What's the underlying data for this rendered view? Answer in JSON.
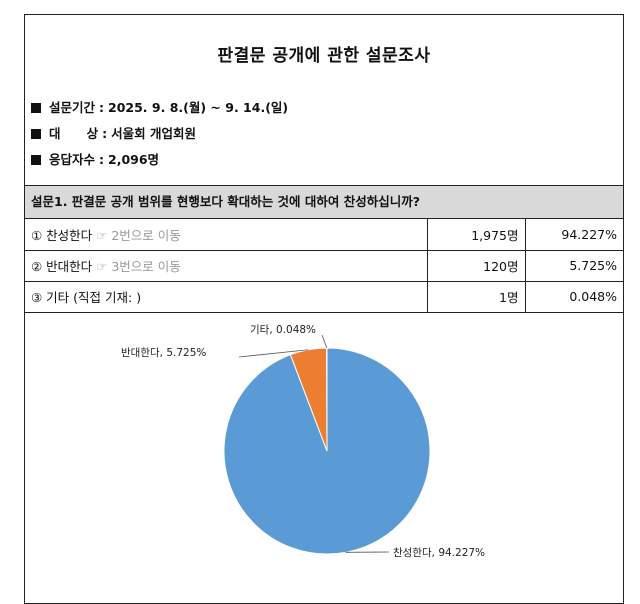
{
  "document": {
    "title": "판결문 공개에 관한 설문조사",
    "info": [
      {
        "label": "설문기간",
        "value": "2025. 9. 8.(월) ~ 9. 14.(일)"
      },
      {
        "label": "대      상",
        "value": "서울회 개업회원"
      },
      {
        "label": "응답자수",
        "value": "2,096명"
      }
    ],
    "question": "설문1. 판결문 공개 범위를 현행보다 확대하는 것에 대하여 찬성하십니까?",
    "answers": [
      {
        "label": "① 찬성한다",
        "note": "☞ 2번으로 이동",
        "count": "1,975명",
        "percent": "94.227%"
      },
      {
        "label": "② 반대한다",
        "note": "☞ 3번으로 이동",
        "count": "120명",
        "percent": "5.725%"
      },
      {
        "label": "③ 기타 (직접 기재: )",
        "note": "",
        "count": "1명",
        "percent": "0.048%"
      }
    ]
  },
  "chart_data": {
    "type": "pie",
    "title": "",
    "slices": [
      {
        "name": "찬성한다",
        "value": 94.227,
        "label": "찬성한다, 94.227%",
        "color": "#5b9bd5"
      },
      {
        "name": "반대한다",
        "value": 5.725,
        "label": "반대한다, 5.725%",
        "color": "#ed7d31"
      },
      {
        "name": "기타",
        "value": 0.048,
        "label": "기타, 0.048%",
        "color": "#a5a5a5"
      }
    ]
  }
}
